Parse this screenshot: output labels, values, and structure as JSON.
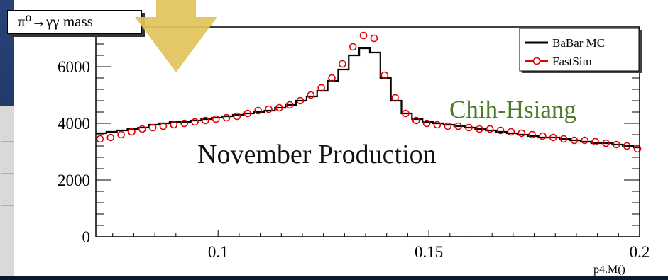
{
  "overlays": {
    "title_box": "π⁰→γγ mass",
    "production_label": "November Production",
    "author_label": "Chih-Hsiang",
    "author_color": "#4e7a2a",
    "arrow_color": "#e2c45c",
    "arrow_icon": "down-arrow-icon"
  },
  "chart_data": {
    "type": "line",
    "title": "π⁰→γγ mass",
    "xlabel": "p4.M()",
    "ylabel": "",
    "xlim": [
      0.071,
      0.2
    ],
    "ylim": [
      0,
      7400
    ],
    "xticks": [
      {
        "v": 0.1,
        "label": "0.1"
      },
      {
        "v": 0.15,
        "label": "0.15"
      },
      {
        "v": 0.2,
        "label": "0.2"
      }
    ],
    "yticks": [
      {
        "v": 0,
        "label": "0"
      },
      {
        "v": 2000,
        "label": "2000"
      },
      {
        "v": 4000,
        "label": "4000"
      },
      {
        "v": 6000,
        "label": "6000"
      }
    ],
    "legend": {
      "placement": "top-right",
      "entries": [
        {
          "label": "BaBar MC",
          "color": "#000000"
        },
        {
          "label": "FastSim",
          "color": "#e00000"
        }
      ]
    },
    "bin_width": 0.0025,
    "series": [
      {
        "name": "BaBar MC",
        "style": "step",
        "color": "#000000",
        "bin_starts": [
          0.071,
          0.0735,
          0.076,
          0.0785,
          0.081,
          0.0835,
          0.086,
          0.0885,
          0.091,
          0.0935,
          0.096,
          0.0985,
          0.101,
          0.1035,
          0.106,
          0.1085,
          0.111,
          0.1135,
          0.116,
          0.1185,
          0.121,
          0.1235,
          0.126,
          0.1285,
          0.131,
          0.1335,
          0.136,
          0.1385,
          0.141,
          0.1435,
          0.146,
          0.1485,
          0.151,
          0.1535,
          0.156,
          0.1585,
          0.161,
          0.1635,
          0.166,
          0.1685,
          0.171,
          0.1735,
          0.176,
          0.1785,
          0.181,
          0.1835,
          0.186,
          0.1885,
          0.191,
          0.1935,
          0.196,
          0.1985
        ],
        "values": [
          3650,
          3700,
          3750,
          3800,
          3850,
          3950,
          4000,
          4050,
          4050,
          4100,
          4150,
          4200,
          4250,
          4300,
          4350,
          4400,
          4450,
          4550,
          4650,
          4800,
          4950,
          5150,
          5500,
          5900,
          6400,
          6650,
          6500,
          5600,
          4800,
          4350,
          4150,
          4050,
          4000,
          3950,
          3900,
          3850,
          3800,
          3750,
          3700,
          3650,
          3600,
          3550,
          3500,
          3500,
          3450,
          3400,
          3350,
          3300,
          3300,
          3250,
          3200,
          3150
        ]
      },
      {
        "name": "FastSim",
        "style": "markers",
        "color": "#e00000",
        "x": [
          0.072,
          0.0745,
          0.077,
          0.0795,
          0.082,
          0.0845,
          0.087,
          0.0895,
          0.092,
          0.0945,
          0.097,
          0.0995,
          0.102,
          0.1045,
          0.107,
          0.1095,
          0.112,
          0.1145,
          0.117,
          0.1195,
          0.122,
          0.1245,
          0.127,
          0.1295,
          0.132,
          0.1345,
          0.137,
          0.1395,
          0.142,
          0.1445,
          0.147,
          0.1495,
          0.152,
          0.1545,
          0.157,
          0.1595,
          0.162,
          0.1645,
          0.167,
          0.1695,
          0.172,
          0.1745,
          0.177,
          0.1795,
          0.182,
          0.1845,
          0.187,
          0.1895,
          0.192,
          0.1945,
          0.197,
          0.1995
        ],
        "values": [
          3450,
          3500,
          3600,
          3700,
          3800,
          3850,
          3900,
          3950,
          4000,
          4050,
          4100,
          4150,
          4200,
          4250,
          4350,
          4450,
          4500,
          4550,
          4650,
          4800,
          5000,
          5250,
          5600,
          6100,
          6700,
          7100,
          7000,
          5700,
          4900,
          4350,
          4100,
          4000,
          3950,
          3900,
          3900,
          3850,
          3800,
          3800,
          3750,
          3700,
          3650,
          3600,
          3550,
          3500,
          3450,
          3400,
          3400,
          3350,
          3300,
          3250,
          3200,
          3100
        ]
      }
    ]
  }
}
